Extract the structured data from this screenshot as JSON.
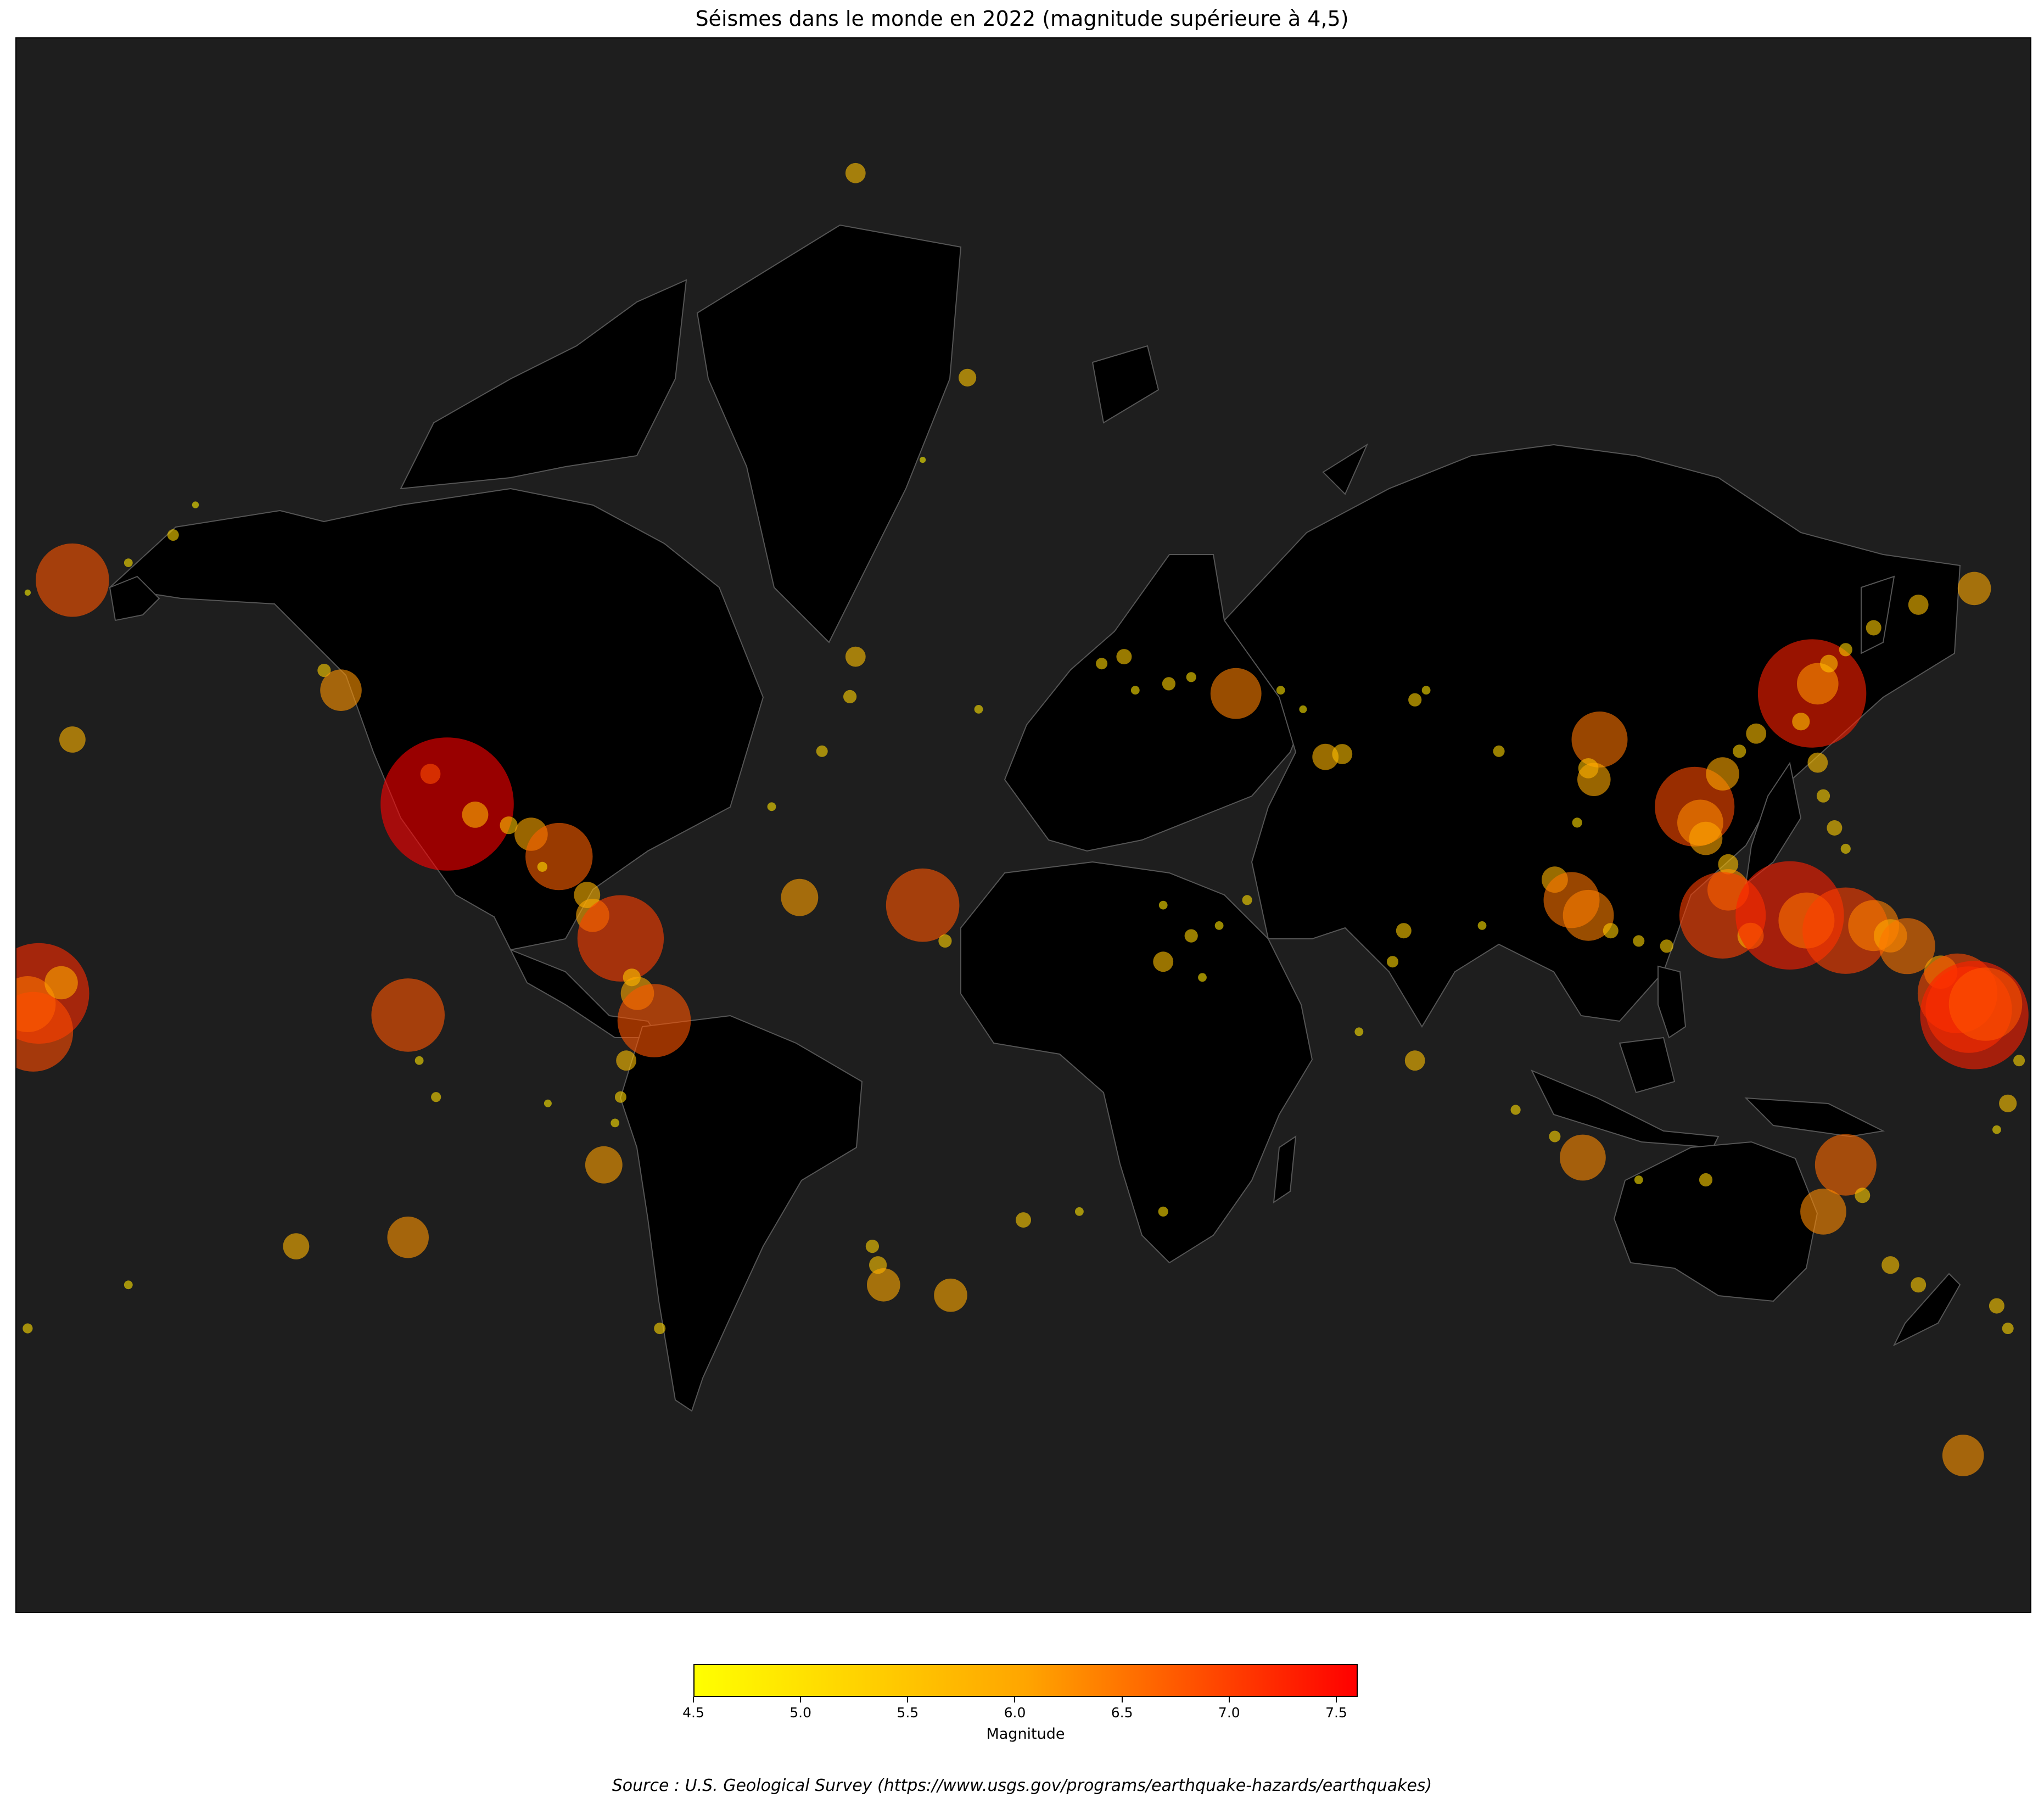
{
  "title": "Séismes dans le monde en 2022 (magnitude supérieure à 4,5)",
  "source": "Source : U.S. Geological Survey (https://www.usgs.gov/programs/earthquake-hazards/earthquakes)",
  "colorbar": {
    "label": "Magnitude",
    "min": 4.5,
    "max": 7.6,
    "ticks": [
      "4.5",
      "5.0",
      "5.5",
      "6.0",
      "6.5",
      "7.0",
      "7.5"
    ],
    "colors": {
      "low": "#ffff00",
      "mid": "#ffa500",
      "high": "#ff0000"
    }
  },
  "colors": {
    "ocean": "#1e1e1e",
    "land": "#000000",
    "border": "#555555"
  },
  "chart_data": {
    "type": "scatter",
    "projection": "mercator",
    "x_field": "longitude",
    "y_field": "latitude",
    "value_field": "magnitude",
    "points": [
      {
        "lon": -178,
        "lat": 51.5,
        "mag": 4.7
      },
      {
        "lon": -170,
        "lat": 53,
        "mag": 6.8
      },
      {
        "lon": -160,
        "lat": 55,
        "mag": 5.0
      },
      {
        "lon": -152,
        "lat": 58,
        "mag": 5.2
      },
      {
        "lon": -148,
        "lat": 61,
        "mag": 4.8
      },
      {
        "lon": -125,
        "lat": 41,
        "mag": 5.3
      },
      {
        "lon": -122,
        "lat": 38,
        "mag": 6.2
      },
      {
        "lon": -106,
        "lat": 24,
        "mag": 5.6
      },
      {
        "lon": -103,
        "lat": 18.5,
        "mag": 7.6
      },
      {
        "lon": -98,
        "lat": 16.5,
        "mag": 5.8
      },
      {
        "lon": -92,
        "lat": 14.5,
        "mag": 5.5
      },
      {
        "lon": -88,
        "lat": 12.8,
        "mag": 6.0
      },
      {
        "lon": -83,
        "lat": 8.5,
        "mag": 6.7
      },
      {
        "lon": -86,
        "lat": 6.5,
        "mag": 5.1
      },
      {
        "lon": -78,
        "lat": 1,
        "mag": 5.8
      },
      {
        "lon": -77,
        "lat": -3,
        "mag": 6.0
      },
      {
        "lon": -72,
        "lat": -7.5,
        "mag": 7.0
      },
      {
        "lon": -70,
        "lat": -15,
        "mag": 5.5
      },
      {
        "lon": -69,
        "lat": -18,
        "mag": 6.0
      },
      {
        "lon": -66,
        "lat": -23,
        "mag": 6.8
      },
      {
        "lon": -71,
        "lat": -30,
        "mag": 5.6
      },
      {
        "lon": -72,
        "lat": -36,
        "mag": 5.2
      },
      {
        "lon": -73,
        "lat": -40,
        "mag": 5.0
      },
      {
        "lon": -75,
        "lat": -46,
        "mag": 6.1
      },
      {
        "lon": -176,
        "lat": -18,
        "mag": 7.2
      },
      {
        "lon": -178,
        "lat": -20,
        "mag": 6.5
      },
      {
        "lon": -177,
        "lat": -25,
        "mag": 6.9
      },
      {
        "lon": -172,
        "lat": -16,
        "mag": 6.0
      },
      {
        "lon": -110,
        "lat": -22,
        "mag": 6.8
      },
      {
        "lon": -108,
        "lat": -30,
        "mag": 5.0
      },
      {
        "lon": -105,
        "lat": -36,
        "mag": 5.1
      },
      {
        "lon": -85,
        "lat": -37,
        "mag": 4.9
      },
      {
        "lon": -110,
        "lat": -55,
        "mag": 6.2
      },
      {
        "lon": -130,
        "lat": -56,
        "mag": 5.8
      },
      {
        "lon": -160,
        "lat": -60,
        "mag": 5.0
      },
      {
        "lon": -178,
        "lat": -64,
        "mag": 5.1
      },
      {
        "lon": -26,
        "lat": -58,
        "mag": 5.5
      },
      {
        "lon": -25,
        "lat": -60,
        "mag": 6.0
      },
      {
        "lon": -27,
        "lat": -56,
        "mag": 5.3
      },
      {
        "lon": -13,
        "lat": -61,
        "mag": 6.0
      },
      {
        "lon": -40,
        "lat": 0.5,
        "mag": 6.1
      },
      {
        "lon": -18,
        "lat": -1,
        "mag": 6.8
      },
      {
        "lon": -14,
        "lat": -8,
        "mag": 5.3
      },
      {
        "lon": -30,
        "lat": 43,
        "mag": 5.6
      },
      {
        "lon": -31,
        "lat": 37,
        "mag": 5.3
      },
      {
        "lon": -45,
        "lat": 18,
        "mag": 5.0
      },
      {
        "lon": -36,
        "lat": 28,
        "mag": 5.2
      },
      {
        "lon": -10,
        "lat": 71,
        "mag": 5.5
      },
      {
        "lon": -18,
        "lat": 65,
        "mag": 4.7
      },
      {
        "lon": -30,
        "lat": 80.5,
        "mag": 5.6
      },
      {
        "lon": -170,
        "lat": 30,
        "mag": 5.8
      },
      {
        "lon": -65,
        "lat": -64,
        "mag": 5.2
      },
      {
        "lon": 20,
        "lat": 38,
        "mag": 5.0
      },
      {
        "lon": 26,
        "lat": 39,
        "mag": 5.3
      },
      {
        "lon": 30,
        "lat": 40,
        "mag": 5.1
      },
      {
        "lon": 38,
        "lat": 37.5,
        "mag": 6.4
      },
      {
        "lon": 46,
        "lat": 38,
        "mag": 5.0
      },
      {
        "lon": 50,
        "lat": 35,
        "mag": 4.9
      },
      {
        "lon": 54,
        "lat": 27,
        "mag": 5.8
      },
      {
        "lon": 57,
        "lat": 27.5,
        "mag": 5.6
      },
      {
        "lon": 70,
        "lat": 36.5,
        "mag": 5.3
      },
      {
        "lon": 72,
        "lat": 38,
        "mag": 5.0
      },
      {
        "lon": 85,
        "lat": 28,
        "mag": 5.2
      },
      {
        "lon": 103,
        "lat": 30,
        "mag": 6.5
      },
      {
        "lon": 101,
        "lat": 25,
        "mag": 5.6
      },
      {
        "lon": 102,
        "lat": 23,
        "mag": 6.0
      },
      {
        "lon": 99,
        "lat": 15,
        "mag": 5.1
      },
      {
        "lon": 95,
        "lat": 4,
        "mag": 5.8
      },
      {
        "lon": 98,
        "lat": 0,
        "mag": 6.5
      },
      {
        "lon": 101,
        "lat": -3,
        "mag": 6.4
      },
      {
        "lon": 105,
        "lat": -6,
        "mag": 5.4
      },
      {
        "lon": 110,
        "lat": -8,
        "mag": 5.2
      },
      {
        "lon": 115,
        "lat": -9,
        "mag": 5.3
      },
      {
        "lon": 120,
        "lat": 18,
        "mag": 6.9
      },
      {
        "lon": 121,
        "lat": 15,
        "mag": 6.3
      },
      {
        "lon": 122,
        "lat": 12,
        "mag": 6.0
      },
      {
        "lon": 126,
        "lat": 7,
        "mag": 5.6
      },
      {
        "lon": 126,
        "lat": 2,
        "mag": 6.2
      },
      {
        "lon": 125,
        "lat": -3,
        "mag": 7.0
      },
      {
        "lon": 130,
        "lat": -7,
        "mag": 5.8
      },
      {
        "lon": 137,
        "lat": -3,
        "mag": 7.3
      },
      {
        "lon": 140,
        "lat": -4,
        "mag": 6.5
      },
      {
        "lon": 147,
        "lat": -6,
        "mag": 7.0
      },
      {
        "lon": 152,
        "lat": -5,
        "mag": 6.4
      },
      {
        "lon": 155,
        "lat": -7,
        "mag": 6.0
      },
      {
        "lon": 158,
        "lat": -9,
        "mag": 6.5
      },
      {
        "lon": 164,
        "lat": -14,
        "mag": 6.0
      },
      {
        "lon": 167,
        "lat": -18,
        "mag": 6.9
      },
      {
        "lon": 169,
        "lat": -21,
        "mag": 7.0
      },
      {
        "lon": 170,
        "lat": -22,
        "mag": 7.3
      },
      {
        "lon": 172,
        "lat": -20,
        "mag": 6.8
      },
      {
        "lon": 178,
        "lat": -30,
        "mag": 5.2
      },
      {
        "lon": 176,
        "lat": -37,
        "mag": 5.5
      },
      {
        "lon": 174,
        "lat": -41,
        "mag": 5.0
      },
      {
        "lon": 141,
        "lat": 37.5,
        "mag": 7.3
      },
      {
        "lon": 142,
        "lat": 39,
        "mag": 6.2
      },
      {
        "lon": 144,
        "lat": 42,
        "mag": 5.5
      },
      {
        "lon": 147,
        "lat": 44,
        "mag": 5.3
      },
      {
        "lon": 152,
        "lat": 47,
        "mag": 5.4
      },
      {
        "lon": 160,
        "lat": 50,
        "mag": 5.6
      },
      {
        "lon": 170,
        "lat": 52,
        "mag": 6.0
      },
      {
        "lon": 139,
        "lat": 33,
        "mag": 5.5
      },
      {
        "lon": 131,
        "lat": 31,
        "mag": 5.6
      },
      {
        "lon": 128,
        "lat": 28,
        "mag": 5.3
      },
      {
        "lon": 125,
        "lat": 24,
        "mag": 6.0
      },
      {
        "lon": 142,
        "lat": 26,
        "mag": 5.6
      },
      {
        "lon": 143,
        "lat": 20,
        "mag": 5.3
      },
      {
        "lon": 145,
        "lat": 14,
        "mag": 5.4
      },
      {
        "lon": 147,
        "lat": 10,
        "mag": 5.1
      },
      {
        "lon": 82,
        "lat": -5,
        "mag": 5.0
      },
      {
        "lon": 68,
        "lat": -6,
        "mag": 5.4
      },
      {
        "lon": 66,
        "lat": -12,
        "mag": 5.2
      },
      {
        "lon": 60,
        "lat": -25,
        "mag": 5.0
      },
      {
        "lon": 70,
        "lat": -30,
        "mag": 5.6
      },
      {
        "lon": 88,
        "lat": -38,
        "mag": 5.1
      },
      {
        "lon": 95,
        "lat": -42,
        "mag": 5.2
      },
      {
        "lon": 100,
        "lat": -45,
        "mag": 6.3
      },
      {
        "lon": 110,
        "lat": -48,
        "mag": 5.0
      },
      {
        "lon": 122,
        "lat": -48,
        "mag": 5.3
      },
      {
        "lon": 147,
        "lat": -46,
        "mag": 6.6
      },
      {
        "lon": 150,
        "lat": -50,
        "mag": 5.4
      },
      {
        "lon": 143,
        "lat": -52,
        "mag": 6.3
      },
      {
        "lon": 155,
        "lat": -58,
        "mag": 5.5
      },
      {
        "lon": 160,
        "lat": -60,
        "mag": 5.4
      },
      {
        "lon": 168,
        "lat": -73,
        "mag": 6.2
      },
      {
        "lon": 174,
        "lat": -62,
        "mag": 5.4
      },
      {
        "lon": 176,
        "lat": -64,
        "mag": 5.2
      },
      {
        "lon": 0,
        "lat": -53,
        "mag": 5.4
      },
      {
        "lon": 10,
        "lat": -52,
        "mag": 5.0
      },
      {
        "lon": 25,
        "lat": -52,
        "mag": 5.1
      },
      {
        "lon": 32,
        "lat": -15,
        "mag": 5.0
      },
      {
        "lon": 30,
        "lat": -7,
        "mag": 5.3
      },
      {
        "lon": 35,
        "lat": -5,
        "mag": 5.0
      },
      {
        "lon": 25,
        "lat": -1,
        "mag": 5.0
      },
      {
        "lon": 40,
        "lat": 0,
        "mag": 5.1
      },
      {
        "lon": -8,
        "lat": 35,
        "mag": 5.0
      },
      {
        "lon": 14,
        "lat": 42,
        "mag": 5.2
      },
      {
        "lon": 18,
        "lat": 43,
        "mag": 5.4
      },
      {
        "lon": 25,
        "lat": -12,
        "mag": 5.6
      }
    ]
  }
}
